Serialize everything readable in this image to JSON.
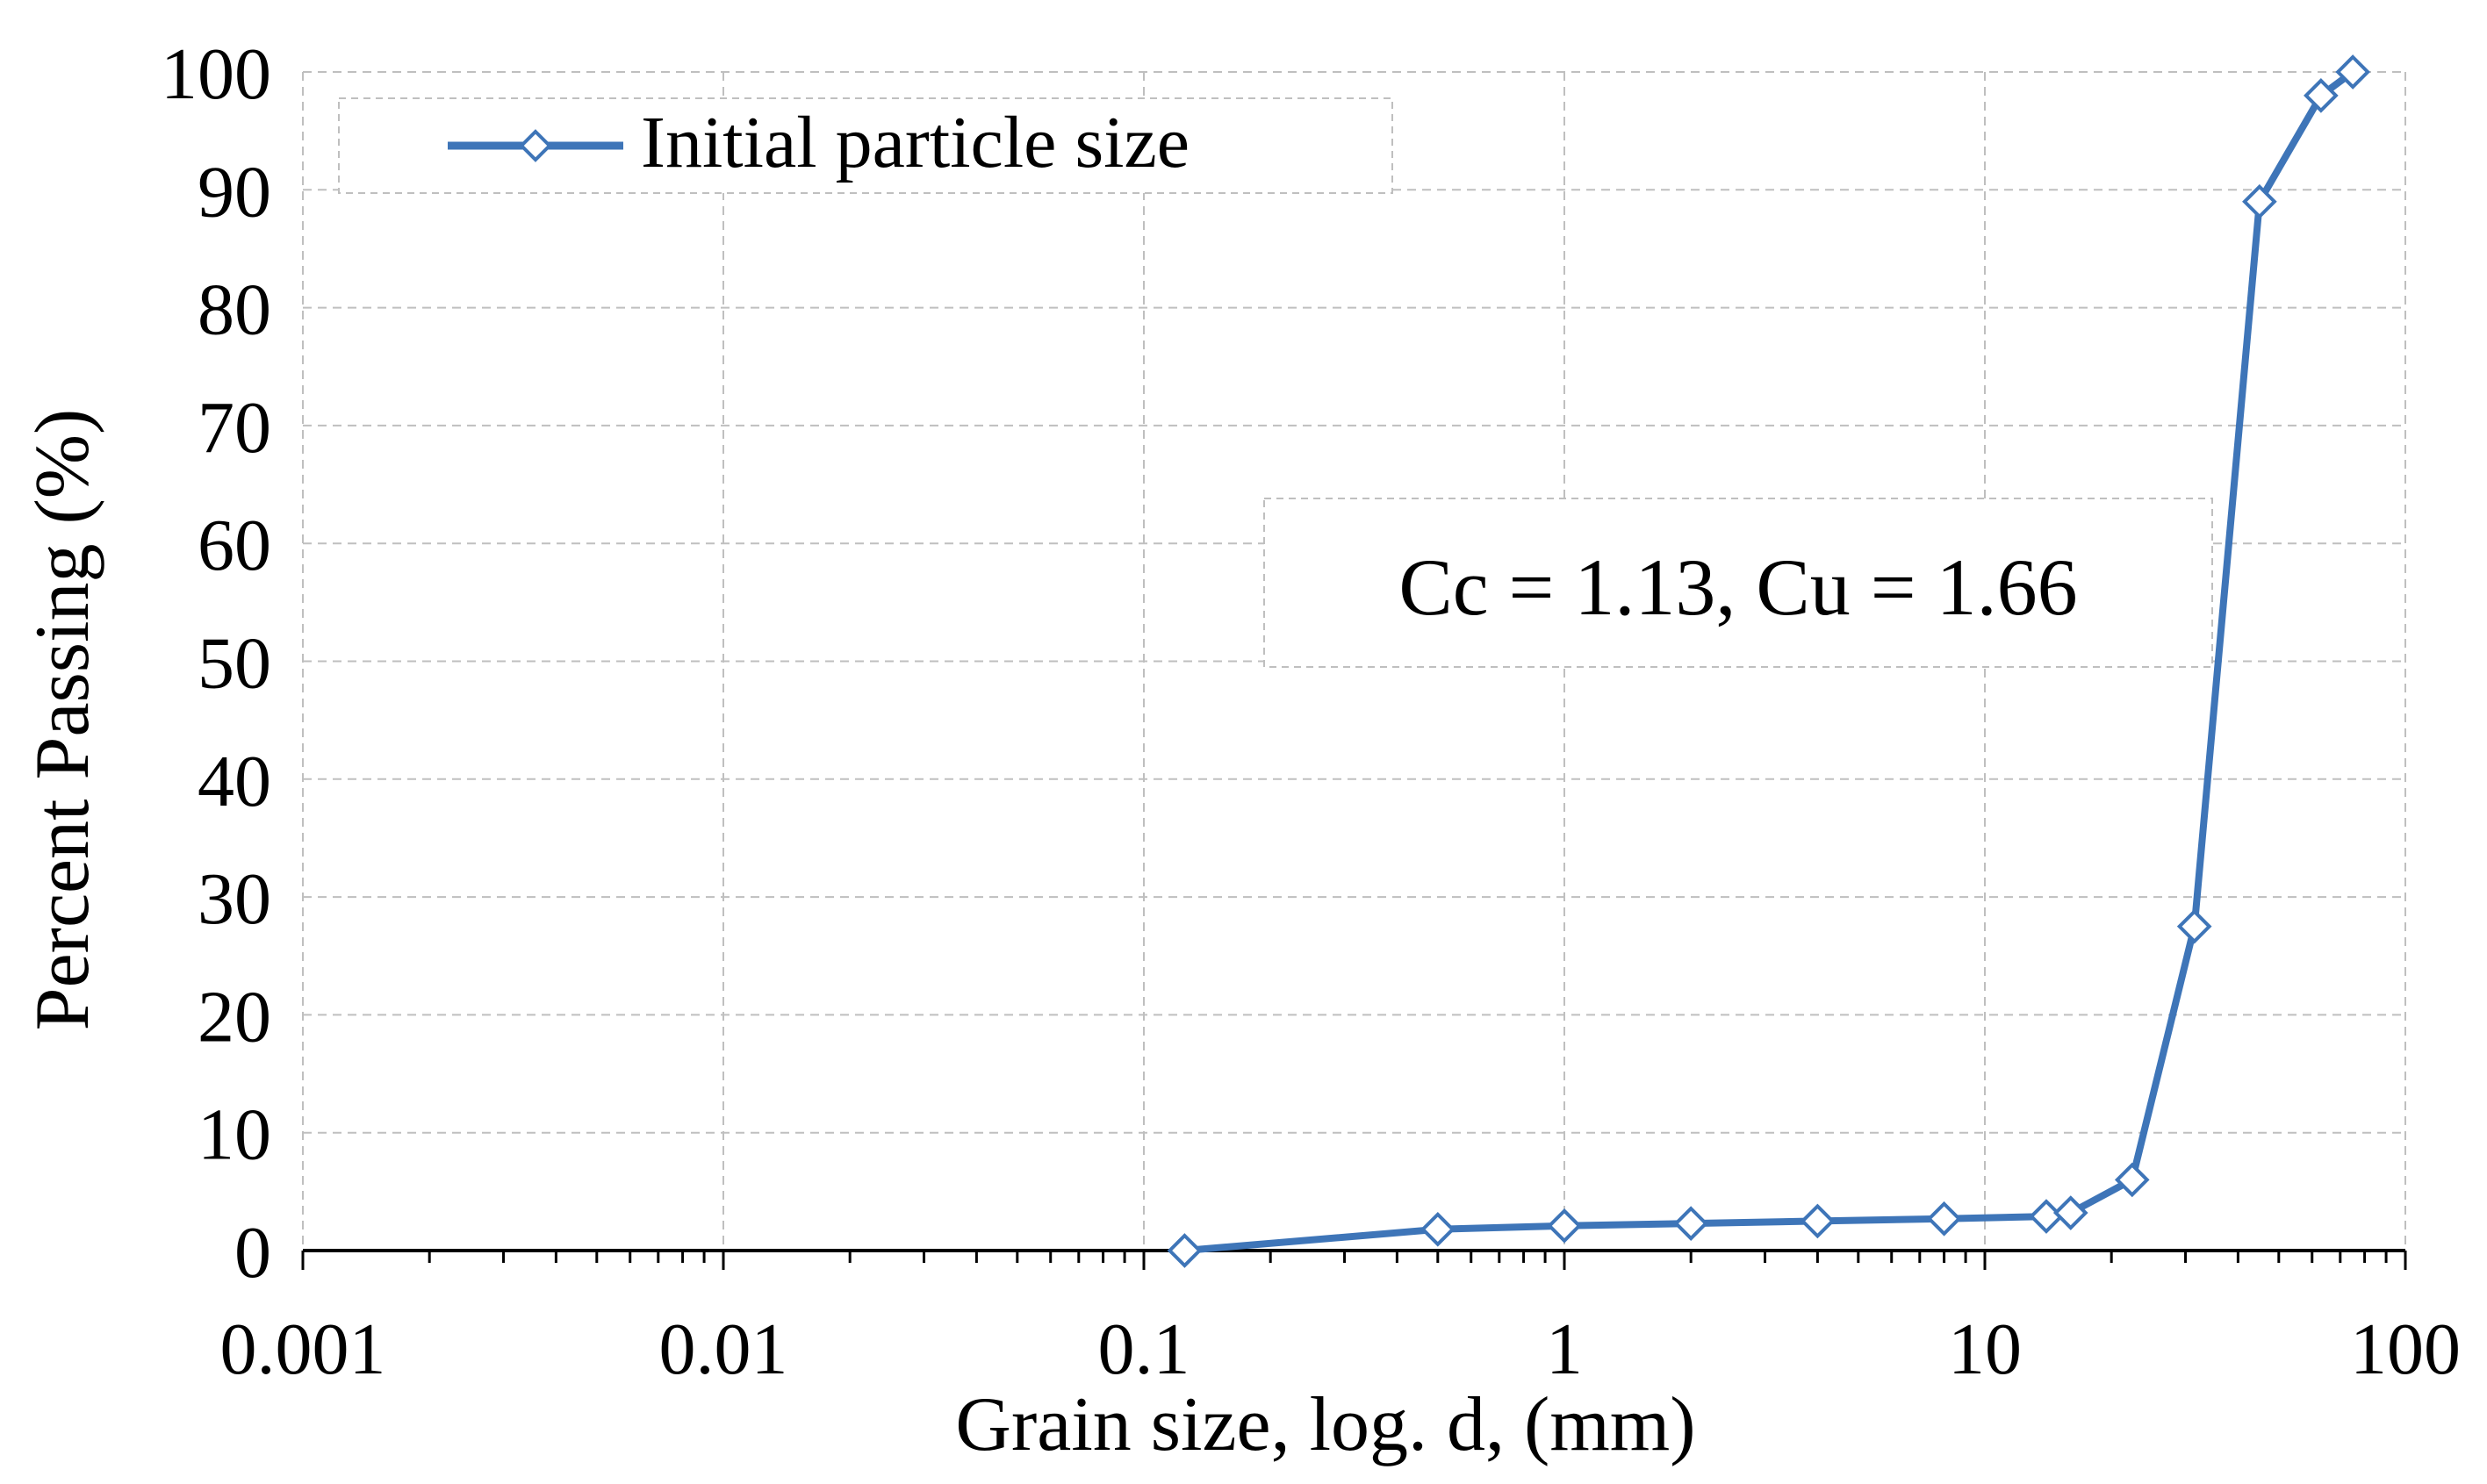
{
  "chart_data": {
    "type": "line",
    "title": "",
    "xlabel": "Grain size, log. d, (mm)",
    "ylabel": "Percent Passing (%)",
    "x_scale": "log",
    "xlim": [
      0.001,
      100
    ],
    "ylim": [
      0,
      100
    ],
    "x_ticks": [
      0.001,
      0.01,
      0.1,
      1,
      10,
      100
    ],
    "x_tick_labels": [
      "0.001",
      "0.01",
      "0.1",
      "1",
      "10",
      "100"
    ],
    "y_ticks": [
      0,
      10,
      20,
      30,
      40,
      50,
      60,
      70,
      80,
      90,
      100
    ],
    "y_tick_labels": [
      "0",
      "10",
      "20",
      "30",
      "40",
      "50",
      "60",
      "70",
      "80",
      "90",
      "100"
    ],
    "grid": true,
    "legend_position": "top-left",
    "series": [
      {
        "name": "Initial particle size",
        "color": "#3E75B8",
        "marker": "diamond",
        "x": [
          0.125,
          0.5,
          1,
          2,
          4,
          8,
          14,
          16,
          22.4,
          31.5,
          45,
          63,
          75
        ],
        "y": [
          0,
          1.8,
          2.1,
          2.3,
          2.5,
          2.7,
          2.9,
          3.2,
          6,
          27.5,
          89,
          98,
          100
        ]
      }
    ],
    "annotation": "Cc = 1.13, Cu = 1.66"
  },
  "colors": {
    "series": "#3E75B8",
    "axis": "#000000",
    "grid": "#BFBFBF"
  }
}
